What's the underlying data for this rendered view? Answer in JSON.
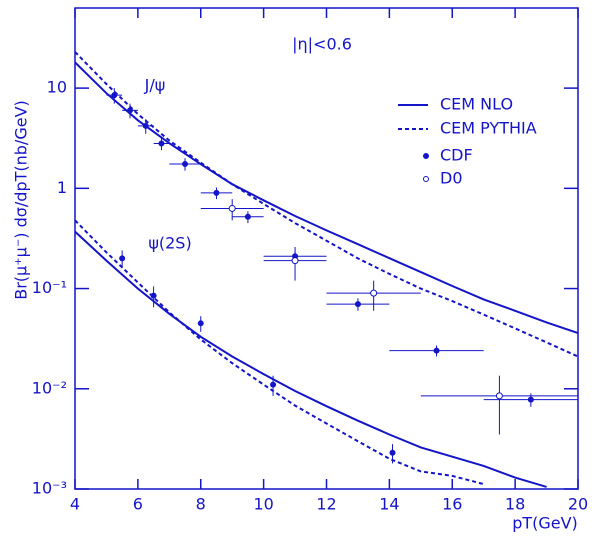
{
  "chart_data": {
    "type": "line",
    "xlabel": "pT(GeV)",
    "ylabel": "Br(μ⁺μ⁻)  dσ/dpT(nb/GeV)",
    "annotations": [
      "|η|<0.6",
      "J/ψ",
      "ψ(2S)"
    ],
    "xlim": [
      4,
      20
    ],
    "xticks": [
      4,
      6,
      8,
      10,
      12,
      14,
      16,
      18,
      20
    ],
    "ylim": [
      0.001,
      63
    ],
    "ylog": true,
    "yticks": [
      {
        "value": 0.001,
        "label": "10⁻³"
      },
      {
        "value": 0.01,
        "label": "10⁻²"
      },
      {
        "value": 0.1,
        "label": "10⁻¹"
      },
      1,
      10
    ],
    "legend": "upper right",
    "series": [
      {
        "name": "CEM NLO",
        "color": "#1414c8",
        "dash": "solid",
        "curves": [
          {
            "x": [
              4,
              5,
              6,
              7,
              8,
              9,
              10,
              11,
              12,
              13,
              14,
              15,
              16,
              17,
              18,
              19,
              20
            ],
            "values": [
              18.1,
              8.9,
              4.77,
              2.82,
              1.74,
              1.1,
              0.76,
              0.53,
              0.38,
              0.277,
              0.201,
              0.146,
              0.106,
              0.078,
              0.06,
              0.046,
              0.036
            ]
          },
          {
            "x": [
              4,
              5,
              6,
              7,
              8,
              9,
              10,
              11,
              12,
              13,
              14,
              15,
              16,
              17,
              18,
              19
            ],
            "values": [
              0.37,
              0.19,
              0.1,
              0.056,
              0.033,
              0.021,
              0.014,
              0.0095,
              0.0067,
              0.0048,
              0.0035,
              0.0026,
              0.0021,
              0.0017,
              0.0013,
              0.00105
            ]
          }
        ]
      },
      {
        "name": "CEM PYTHIA",
        "color": "#1414c8",
        "dash": "dashed",
        "curves": [
          {
            "x": [
              4,
              5,
              6,
              7,
              8,
              9,
              10,
              11,
              12,
              13,
              14,
              15,
              16,
              17,
              18,
              19,
              20
            ],
            "values": [
              23,
              11,
              5.5,
              3.0,
              1.8,
              1.1,
              0.7,
              0.45,
              0.3,
              0.2,
              0.14,
              0.1,
              0.075,
              0.055,
              0.04,
              0.029,
              0.021
            ]
          },
          {
            "x": [
              4,
              5,
              6,
              7,
              8,
              9,
              10,
              11,
              12,
              13,
              14,
              15,
              16,
              17
            ],
            "values": [
              0.48,
              0.23,
              0.115,
              0.058,
              0.031,
              0.018,
              0.011,
              0.0068,
              0.0045,
              0.003,
              0.002,
              0.0015,
              0.00135,
              0.00112
            ]
          }
        ]
      },
      {
        "name": "CDF",
        "color": "#1414c8",
        "marker": "filled",
        "x": [
          5.25,
          5.75,
          6.25,
          6.75,
          7.5,
          8.5,
          9.5,
          11,
          13,
          15.5,
          18.5,
          5.5,
          6.5,
          8,
          10.3,
          14.1
        ],
        "values": [
          8.5,
          6.0,
          4.2,
          2.8,
          1.75,
          0.9,
          0.52,
          0.21,
          0.07,
          0.024,
          0.0078,
          0.2,
          0.085,
          0.045,
          0.011,
          0.0023
        ],
        "xerr": [
          0.25,
          0.25,
          0.25,
          0.25,
          0.5,
          0.5,
          0.5,
          1,
          1,
          1.5,
          1.5,
          0,
          0,
          0,
          0,
          0
        ],
        "yerr": [
          1.5,
          1.0,
          0.7,
          0.4,
          0.25,
          0.12,
          0.07,
          0.03,
          0.01,
          0.003,
          0.0012,
          0.04,
          0.02,
          0.008,
          0.0025,
          0.0005
        ]
      },
      {
        "name": "D0",
        "color": "#1414c8",
        "marker": "open",
        "x": [
          9,
          11,
          13.5,
          17.5
        ],
        "values": [
          0.63,
          0.19,
          0.09,
          0.0085
        ],
        "xerr": [
          1,
          1,
          1.5,
          2.5
        ],
        "yerr": [
          0.15,
          0.07,
          0.03,
          0.005
        ]
      }
    ]
  }
}
